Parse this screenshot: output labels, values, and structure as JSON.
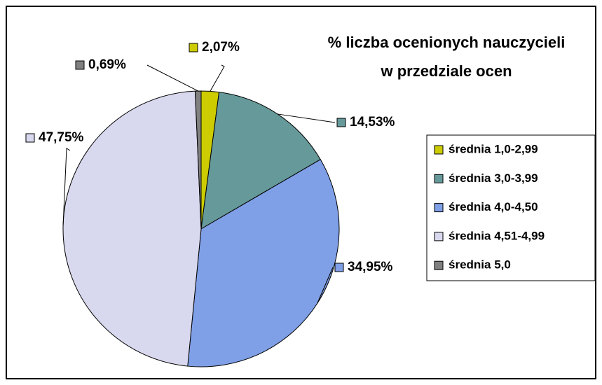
{
  "chart_data": {
    "type": "pie",
    "title": [
      "% liczba ocenionych nauczycieli",
      "w przedziale ocen"
    ],
    "categories": [
      "średnia 1,0-2,99",
      "średnia 3,0-3,99",
      "średnia 4,0-4,50",
      "średnia 4,51-4,99",
      "średnia 5,0"
    ],
    "values": [
      2.07,
      14.53,
      34.95,
      47.75,
      0.69
    ],
    "value_labels": [
      "2,07%",
      "14,53%",
      "34,95%",
      "47,75%",
      "0,69%"
    ],
    "colors": [
      "#cccc00",
      "#669999",
      "#7f9fe6",
      "#d8d8ee",
      "#808080"
    ],
    "legend": "right"
  }
}
